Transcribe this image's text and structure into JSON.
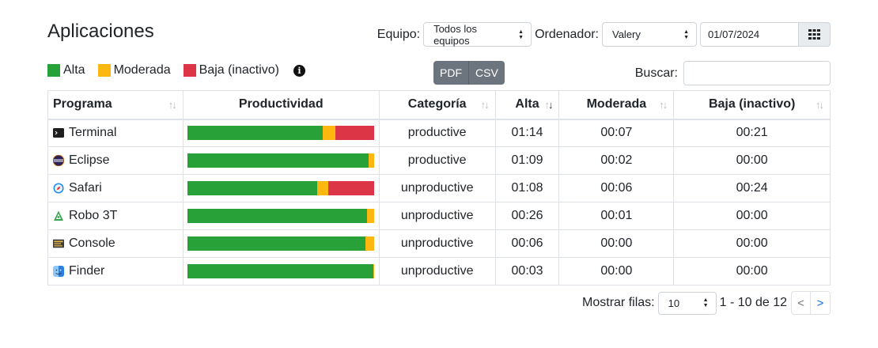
{
  "header": {
    "title": "Aplicaciones"
  },
  "filters": {
    "team_label": "Equipo:",
    "team_value": "Todos los equipos",
    "computer_label": "Ordenador:",
    "computer_value": "Valery",
    "date_value": "01/07/2024",
    "calendar_icon": "grid-calendar-icon"
  },
  "legend": {
    "items": [
      {
        "label": "Alta",
        "color": "#28a138"
      },
      {
        "label": "Moderada",
        "color": "#fcb711"
      },
      {
        "label": "Baja (inactivo)",
        "color": "#dc3545"
      }
    ],
    "info_icon": "info-icon"
  },
  "export": {
    "pdf_label": "PDF",
    "csv_label": "CSV"
  },
  "search": {
    "label": "Buscar:",
    "value": ""
  },
  "table": {
    "columns": [
      "Programa",
      "Productividad",
      "Categoría",
      "Alta",
      "Moderada",
      "Baja (inactivo)"
    ],
    "rows": [
      {
        "program": "Terminal",
        "icon": "terminal-icon",
        "category": "productive",
        "alta": "01:14",
        "moderada": "00:07",
        "baja": "00:21",
        "bar": {
          "alta": 0.725,
          "moderada": 0.069,
          "baja": 0.206
        }
      },
      {
        "program": "Eclipse",
        "icon": "eclipse-icon",
        "category": "productive",
        "alta": "01:09",
        "moderada": "00:02",
        "baja": "00:00",
        "bar": {
          "alta": 0.972,
          "moderada": 0.028,
          "baja": 0
        }
      },
      {
        "program": "Safari",
        "icon": "safari-icon",
        "category": "unproductive",
        "alta": "01:08",
        "moderada": "00:06",
        "baja": "00:24",
        "bar": {
          "alta": 0.694,
          "moderada": 0.061,
          "baja": 0.245
        }
      },
      {
        "program": "Robo 3T",
        "icon": "robo3t-icon",
        "category": "unproductive",
        "alta": "00:26",
        "moderada": "00:01",
        "baja": "00:00",
        "bar": {
          "alta": 0.963,
          "moderada": 0.037,
          "baja": 0
        }
      },
      {
        "program": "Console",
        "icon": "console-icon",
        "category": "unproductive",
        "alta": "00:06",
        "moderada": "00:00",
        "baja": "00:00",
        "bar": {
          "alta": 0.955,
          "moderada": 0.045,
          "baja": 0
        }
      },
      {
        "program": "Finder",
        "icon": "finder-icon",
        "category": "unproductive",
        "alta": "00:03",
        "moderada": "00:00",
        "baja": "00:00",
        "bar": {
          "alta": 0.995,
          "moderada": 0.005,
          "baja": 0
        }
      }
    ]
  },
  "pagination": {
    "rows_label": "Mostrar filas:",
    "rows_value": "10",
    "range": "1 - 10 de 12",
    "prev": "<",
    "next": ">"
  }
}
